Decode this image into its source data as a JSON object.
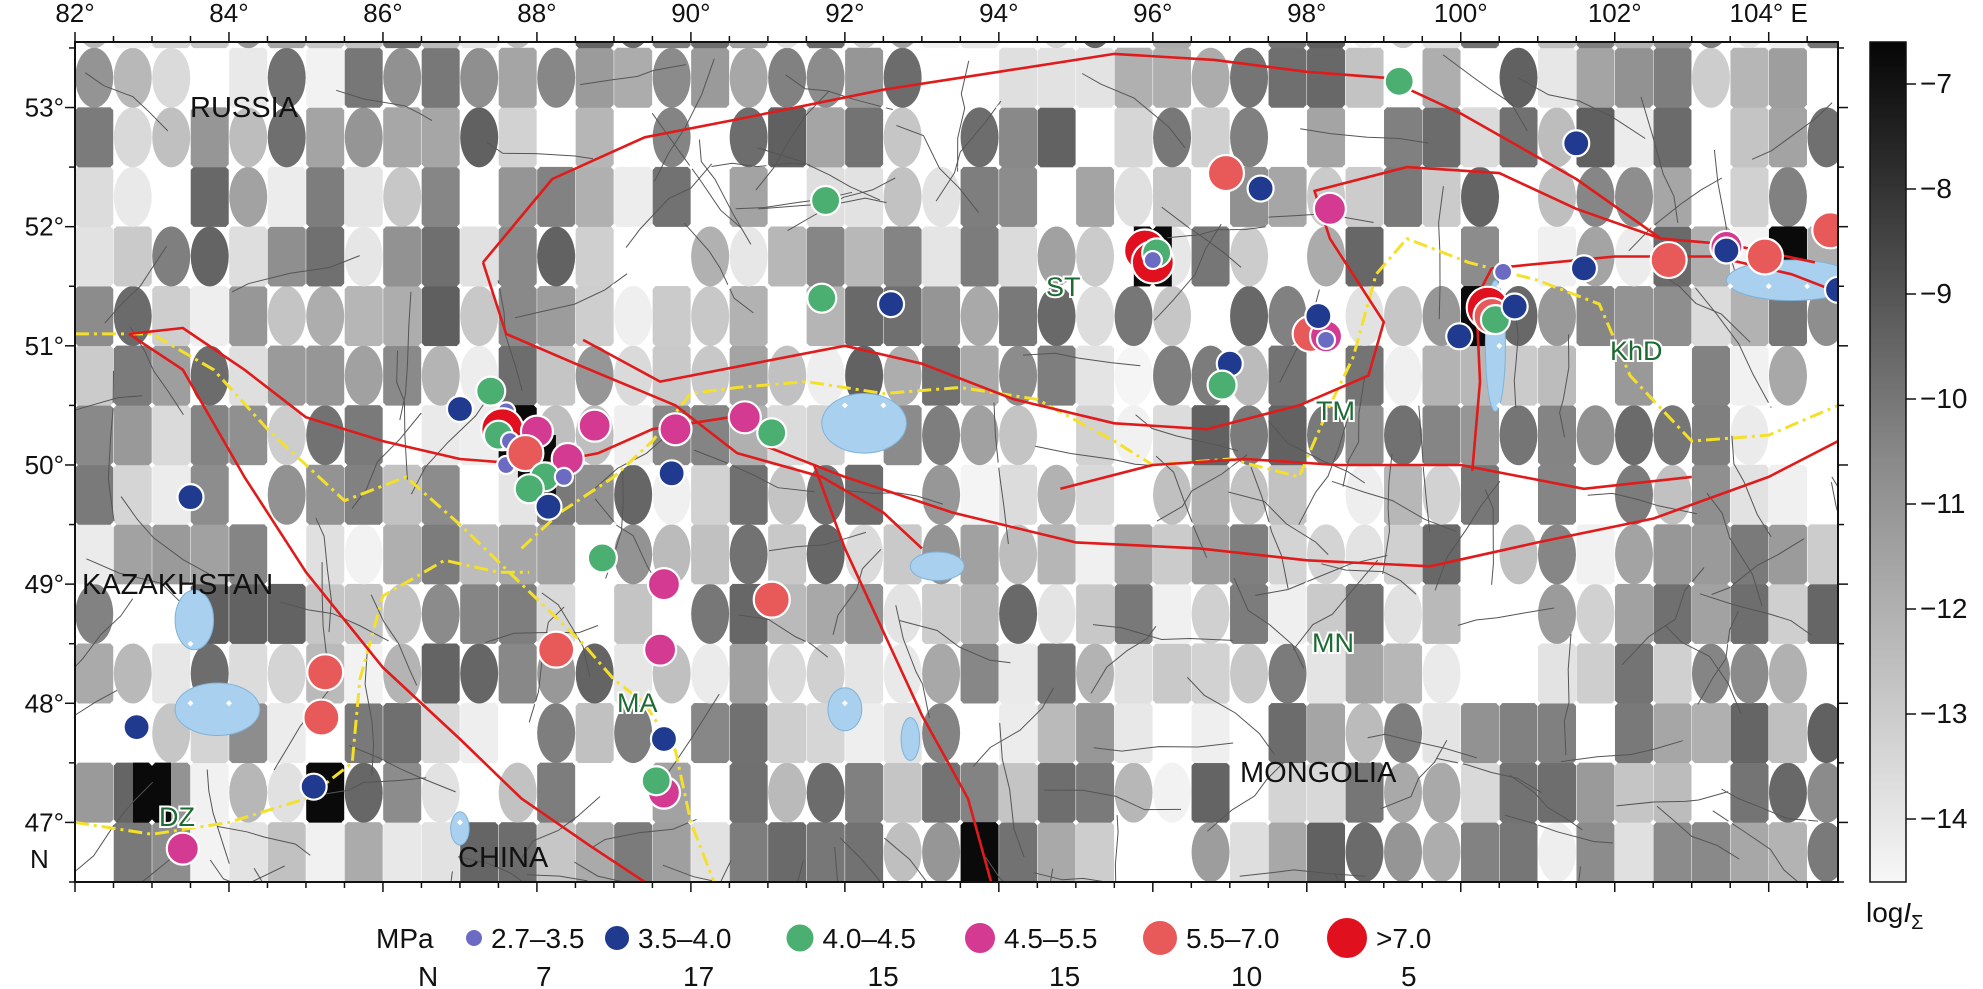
{
  "map": {
    "lon_range": [
      82,
      104.9
    ],
    "lat_range": [
      46.5,
      53.55
    ],
    "lon_ticks": [
      {
        "value": 82,
        "label": "82°"
      },
      {
        "value": 84,
        "label": "84°"
      },
      {
        "value": 86,
        "label": "86°"
      },
      {
        "value": 88,
        "label": "88°"
      },
      {
        "value": 90,
        "label": "90°"
      },
      {
        "value": 92,
        "label": "92°"
      },
      {
        "value": 94,
        "label": "94°"
      },
      {
        "value": 96,
        "label": "96°"
      },
      {
        "value": 98,
        "label": "98°"
      },
      {
        "value": 100,
        "label": "100°"
      },
      {
        "value": 102,
        "label": "102°"
      },
      {
        "value": 104,
        "label": "104° E"
      }
    ],
    "lat_ticks": [
      {
        "value": 53,
        "label": "53°"
      },
      {
        "value": 52,
        "label": "52°"
      },
      {
        "value": 51,
        "label": "51°"
      },
      {
        "value": 50,
        "label": "50°"
      },
      {
        "value": 49,
        "label": "49°"
      },
      {
        "value": 48,
        "label": "48°"
      },
      {
        "value": 47,
        "label": "47°"
      }
    ],
    "lat_suffix": "N",
    "countries": [
      {
        "name": "RUSSIA",
        "lon": 83.6,
        "lat": 53.0
      },
      {
        "name": "KAZAKHSTAN",
        "lon": 82.1,
        "lat": 49.15
      },
      {
        "name": "MONGOLIA",
        "lon": 96.3,
        "lat": 47.45
      },
      {
        "name": "CHINA",
        "lon": 87.3,
        "lat": 46.75
      }
    ],
    "regions": [
      {
        "name": "ST",
        "lon": 94.6,
        "lat": 51.55
      },
      {
        "name": "TM",
        "lon": 98.3,
        "lat": 50.57
      },
      {
        "name": "KhD",
        "lon": 102.0,
        "lat": 51.0
      },
      {
        "name": "MN",
        "lon": 97.8,
        "lat": 48.55
      },
      {
        "name": "MA",
        "lon": 89.3,
        "lat": 48.07
      },
      {
        "name": "DZ",
        "lon": 83.4,
        "lat": 46.95
      }
    ],
    "colors": {
      "water": "#a9d0ee",
      "fault": "#e01b1b",
      "border": "#f4e02a",
      "lineament": "#555555"
    }
  },
  "colorbar": {
    "ticks": [
      "−7",
      "−8",
      "−9",
      "−10",
      "−11",
      "−12",
      "−13",
      "−14"
    ],
    "tick_values": [
      -7,
      -8,
      -9,
      -10,
      -11,
      -12,
      -13,
      -14
    ],
    "range": [
      -14.6,
      -6.6
    ],
    "label_main": "log",
    "label_italic": "I",
    "label_sub": "Σ"
  },
  "legend": {
    "unit_label": "MPa",
    "count_label": "N",
    "classes": [
      {
        "range": "2.7–3.5",
        "count": "7",
        "color": "#6b6bc3"
      },
      {
        "range": "3.5–4.0",
        "count": "17",
        "color": "#1f3a8f"
      },
      {
        "range": "4.0–4.5",
        "count": "15",
        "color": "#4caf72"
      },
      {
        "range": "4.5–5.5",
        "count": "15",
        "color": "#d43a92"
      },
      {
        "range": "5.5–7.0",
        "count": "10",
        "color": "#e85a5a"
      },
      {
        "range": ">7.0",
        "count": "5",
        "color": "#e0101e"
      }
    ]
  },
  "events": [
    {
      "lon": 99.2,
      "lat": 53.22,
      "cls": 2
    },
    {
      "lon": 96.95,
      "lat": 52.45,
      "cls": 4
    },
    {
      "lon": 97.4,
      "lat": 52.32,
      "cls": 1
    },
    {
      "lon": 98.3,
      "lat": 52.15,
      "cls": 3
    },
    {
      "lon": 101.5,
      "lat": 52.7,
      "cls": 1
    },
    {
      "lon": 91.75,
      "lat": 52.22,
      "cls": 2
    },
    {
      "lon": 95.9,
      "lat": 51.8,
      "cls": 5
    },
    {
      "lon": 96.0,
      "lat": 51.7,
      "cls": 5
    },
    {
      "lon": 96.05,
      "lat": 51.78,
      "cls": 2
    },
    {
      "lon": 96.0,
      "lat": 51.72,
      "cls": 0
    },
    {
      "lon": 91.7,
      "lat": 51.4,
      "cls": 2
    },
    {
      "lon": 92.6,
      "lat": 51.35,
      "cls": 1
    },
    {
      "lon": 100.35,
      "lat": 51.32,
      "cls": 5
    },
    {
      "lon": 100.4,
      "lat": 51.25,
      "cls": 4
    },
    {
      "lon": 100.45,
      "lat": 51.22,
      "cls": 2
    },
    {
      "lon": 100.7,
      "lat": 51.33,
      "cls": 1
    },
    {
      "lon": 99.98,
      "lat": 51.08,
      "cls": 1
    },
    {
      "lon": 100.55,
      "lat": 51.62,
      "cls": 0
    },
    {
      "lon": 101.6,
      "lat": 51.65,
      "cls": 1
    },
    {
      "lon": 98.05,
      "lat": 51.1,
      "cls": 4
    },
    {
      "lon": 98.25,
      "lat": 51.08,
      "cls": 3
    },
    {
      "lon": 98.15,
      "lat": 51.25,
      "cls": 1
    },
    {
      "lon": 98.25,
      "lat": 51.05,
      "cls": 0
    },
    {
      "lon": 97.0,
      "lat": 50.85,
      "cls": 1
    },
    {
      "lon": 96.9,
      "lat": 50.67,
      "cls": 2
    },
    {
      "lon": 102.7,
      "lat": 51.72,
      "cls": 4
    },
    {
      "lon": 103.45,
      "lat": 51.83,
      "cls": 3
    },
    {
      "lon": 103.45,
      "lat": 51.8,
      "cls": 1
    },
    {
      "lon": 103.95,
      "lat": 51.75,
      "cls": 4
    },
    {
      "lon": 104.8,
      "lat": 51.97,
      "cls": 4
    },
    {
      "lon": 104.9,
      "lat": 51.47,
      "cls": 1
    },
    {
      "lon": 87.0,
      "lat": 50.47,
      "cls": 1
    },
    {
      "lon": 87.4,
      "lat": 50.62,
      "cls": 2
    },
    {
      "lon": 87.6,
      "lat": 50.45,
      "cls": 0
    },
    {
      "lon": 87.55,
      "lat": 50.3,
      "cls": 5
    },
    {
      "lon": 87.5,
      "lat": 50.25,
      "cls": 2
    },
    {
      "lon": 87.65,
      "lat": 50.2,
      "cls": 0
    },
    {
      "lon": 87.6,
      "lat": 50.0,
      "cls": 0
    },
    {
      "lon": 88.0,
      "lat": 50.28,
      "cls": 3
    },
    {
      "lon": 87.85,
      "lat": 50.1,
      "cls": 4
    },
    {
      "lon": 88.4,
      "lat": 50.05,
      "cls": 3
    },
    {
      "lon": 88.1,
      "lat": 49.9,
      "cls": 2
    },
    {
      "lon": 87.9,
      "lat": 49.8,
      "cls": 2
    },
    {
      "lon": 88.35,
      "lat": 49.9,
      "cls": 0
    },
    {
      "lon": 88.15,
      "lat": 49.65,
      "cls": 1
    },
    {
      "lon": 88.75,
      "lat": 50.33,
      "cls": 3
    },
    {
      "lon": 89.8,
      "lat": 50.3,
      "cls": 3
    },
    {
      "lon": 90.7,
      "lat": 50.4,
      "cls": 3
    },
    {
      "lon": 91.05,
      "lat": 50.27,
      "cls": 2
    },
    {
      "lon": 89.75,
      "lat": 49.93,
      "cls": 1
    },
    {
      "lon": 83.5,
      "lat": 49.73,
      "cls": 1
    },
    {
      "lon": 88.85,
      "lat": 49.22,
      "cls": 2
    },
    {
      "lon": 89.65,
      "lat": 49.0,
      "cls": 3
    },
    {
      "lon": 91.05,
      "lat": 48.87,
      "cls": 4
    },
    {
      "lon": 88.25,
      "lat": 48.45,
      "cls": 4
    },
    {
      "lon": 89.6,
      "lat": 48.45,
      "cls": 3
    },
    {
      "lon": 85.25,
      "lat": 48.26,
      "cls": 4
    },
    {
      "lon": 85.2,
      "lat": 47.88,
      "cls": 4
    },
    {
      "lon": 82.8,
      "lat": 47.8,
      "cls": 1
    },
    {
      "lon": 89.65,
      "lat": 47.7,
      "cls": 1
    },
    {
      "lon": 89.65,
      "lat": 47.25,
      "cls": 3
    },
    {
      "lon": 89.55,
      "lat": 47.35,
      "cls": 2
    },
    {
      "lon": 85.1,
      "lat": 47.3,
      "cls": 1
    },
    {
      "lon": 83.4,
      "lat": 46.78,
      "cls": 3
    }
  ],
  "faults": [
    [
      [
        82.7,
        51.1
      ],
      [
        83.4,
        51.15
      ],
      [
        84.2,
        50.8
      ],
      [
        85.0,
        50.4
      ],
      [
        86.0,
        50.2
      ],
      [
        87.0,
        50.05
      ],
      [
        88.0,
        50.0
      ],
      [
        88.8,
        50.1
      ],
      [
        89.5,
        50.3
      ],
      [
        90.5,
        50.4
      ]
    ],
    [
      [
        82.7,
        51.1
      ],
      [
        83.4,
        50.8
      ],
      [
        84.2,
        49.9
      ],
      [
        85.0,
        49.1
      ],
      [
        86.0,
        48.3
      ],
      [
        87.0,
        47.7
      ],
      [
        87.8,
        47.2
      ],
      [
        88.7,
        46.8
      ],
      [
        89.4,
        46.5
      ]
    ],
    [
      [
        87.3,
        51.7
      ],
      [
        88.2,
        52.4
      ],
      [
        89.4,
        52.75
      ],
      [
        90.6,
        52.9
      ],
      [
        92.5,
        53.15
      ],
      [
        94.0,
        53.3
      ],
      [
        95.5,
        53.45
      ],
      [
        96.8,
        53.4
      ],
      [
        98.0,
        53.3
      ],
      [
        99.0,
        53.25
      ],
      [
        100.0,
        52.95
      ],
      [
        101.5,
        52.4
      ],
      [
        102.6,
        51.9
      ],
      [
        103.5,
        51.85
      ],
      [
        104.6,
        51.7
      ]
    ],
    [
      [
        87.3,
        51.7
      ],
      [
        87.6,
        51.1
      ],
      [
        88.5,
        50.85
      ],
      [
        89.8,
        50.5
      ],
      [
        90.6,
        50.1
      ],
      [
        91.7,
        49.9
      ],
      [
        92.5,
        49.6
      ],
      [
        93.0,
        49.3
      ]
    ],
    [
      [
        88.6,
        51.05
      ],
      [
        89.6,
        50.7
      ],
      [
        90.8,
        50.85
      ],
      [
        92.0,
        51.0
      ],
      [
        93.0,
        50.85
      ],
      [
        94.2,
        50.55
      ],
      [
        95.5,
        50.35
      ],
      [
        96.7,
        50.3
      ],
      [
        97.9,
        50.5
      ],
      [
        98.8,
        50.75
      ],
      [
        99.0,
        51.2
      ],
      [
        98.3,
        51.9
      ],
      [
        98.1,
        52.3
      ],
      [
        99.3,
        52.5
      ],
      [
        100.5,
        52.45
      ],
      [
        101.5,
        52.15
      ],
      [
        102.6,
        51.9
      ]
    ],
    [
      [
        91.0,
        50.15
      ],
      [
        92.0,
        49.9
      ],
      [
        93.4,
        49.6
      ],
      [
        95.0,
        49.35
      ],
      [
        96.6,
        49.3
      ],
      [
        98.0,
        49.2
      ],
      [
        99.6,
        49.15
      ],
      [
        101.0,
        49.35
      ],
      [
        102.5,
        49.55
      ],
      [
        104.0,
        49.9
      ],
      [
        104.9,
        50.2
      ]
    ],
    [
      [
        94.8,
        49.8
      ],
      [
        96.0,
        50.0
      ],
      [
        97.2,
        50.05
      ],
      [
        98.4,
        50.0
      ],
      [
        100.0,
        50.0
      ],
      [
        101.6,
        49.8
      ],
      [
        103.0,
        49.9
      ]
    ],
    [
      [
        91.6,
        50.0
      ],
      [
        92.0,
        49.3
      ],
      [
        92.5,
        48.6
      ],
      [
        93.0,
        47.9
      ],
      [
        93.6,
        47.2
      ],
      [
        93.9,
        46.5
      ]
    ],
    [
      [
        100.15,
        49.95
      ],
      [
        100.25,
        50.7
      ],
      [
        100.2,
        51.4
      ],
      [
        100.4,
        51.65
      ],
      [
        101.2,
        51.7
      ],
      [
        102.0,
        51.75
      ],
      [
        103.3,
        51.75
      ],
      [
        104.3,
        51.6
      ],
      [
        104.9,
        51.45
      ]
    ]
  ],
  "borders": [
    [
      [
        82.0,
        51.1
      ],
      [
        83.0,
        51.1
      ],
      [
        83.8,
        50.8
      ],
      [
        84.5,
        50.3
      ],
      [
        85.5,
        49.7
      ],
      [
        86.3,
        49.9
      ],
      [
        87.0,
        49.5
      ],
      [
        87.8,
        49.0
      ],
      [
        88.6,
        48.5
      ],
      [
        89.0,
        48.2
      ],
      [
        89.4,
        48.0
      ],
      [
        89.8,
        47.6
      ],
      [
        90.0,
        47.0
      ],
      [
        90.3,
        46.5
      ]
    ],
    [
      [
        82.0,
        47.0
      ],
      [
        83.0,
        46.9
      ],
      [
        84.0,
        47.0
      ],
      [
        85.0,
        47.2
      ],
      [
        85.6,
        47.5
      ],
      [
        85.7,
        48.2
      ],
      [
        86.0,
        48.9
      ],
      [
        86.8,
        49.2
      ],
      [
        87.5,
        49.1
      ],
      [
        87.9,
        49.1
      ]
    ],
    [
      [
        87.8,
        49.3
      ],
      [
        88.3,
        49.6
      ],
      [
        89.0,
        49.9
      ],
      [
        89.5,
        50.2
      ],
      [
        90.0,
        50.6
      ],
      [
        90.6,
        50.65
      ],
      [
        91.5,
        50.7
      ],
      [
        92.5,
        50.6
      ],
      [
        93.5,
        50.65
      ],
      [
        94.5,
        50.55
      ],
      [
        95.5,
        50.2
      ],
      [
        96.0,
        50.0
      ],
      [
        97.0,
        50.05
      ],
      [
        97.9,
        49.9
      ],
      [
        98.3,
        50.5
      ],
      [
        98.6,
        50.9
      ],
      [
        98.9,
        51.6
      ],
      [
        99.3,
        51.9
      ],
      [
        100.1,
        51.7
      ],
      [
        101.0,
        51.55
      ],
      [
        101.8,
        51.35
      ],
      [
        102.2,
        50.75
      ],
      [
        103.0,
        50.2
      ],
      [
        104.0,
        50.25
      ],
      [
        104.9,
        50.5
      ]
    ]
  ],
  "lakes": [
    {
      "lon": 92.25,
      "lat": 50.35,
      "rlon": 0.55,
      "rlat": 0.25
    },
    {
      "lon": 100.45,
      "lat": 51.0,
      "rlon": 0.13,
      "rlat": 0.55
    },
    {
      "lon": 104.3,
      "lat": 51.55,
      "rlon": 0.85,
      "rlat": 0.17
    },
    {
      "lon": 83.85,
      "lat": 47.95,
      "rlon": 0.55,
      "rlat": 0.22
    },
    {
      "lon": 83.55,
      "lat": 48.7,
      "rlon": 0.25,
      "rlat": 0.25
    },
    {
      "lon": 92.0,
      "lat": 47.95,
      "rlon": 0.22,
      "rlat": 0.18
    },
    {
      "lon": 93.2,
      "lat": 49.15,
      "rlon": 0.35,
      "rlat": 0.12
    },
    {
      "lon": 92.85,
      "lat": 47.7,
      "rlon": 0.12,
      "rlat": 0.18
    },
    {
      "lon": 87.0,
      "lat": 46.95,
      "rlon": 0.12,
      "rlat": 0.14
    }
  ]
}
